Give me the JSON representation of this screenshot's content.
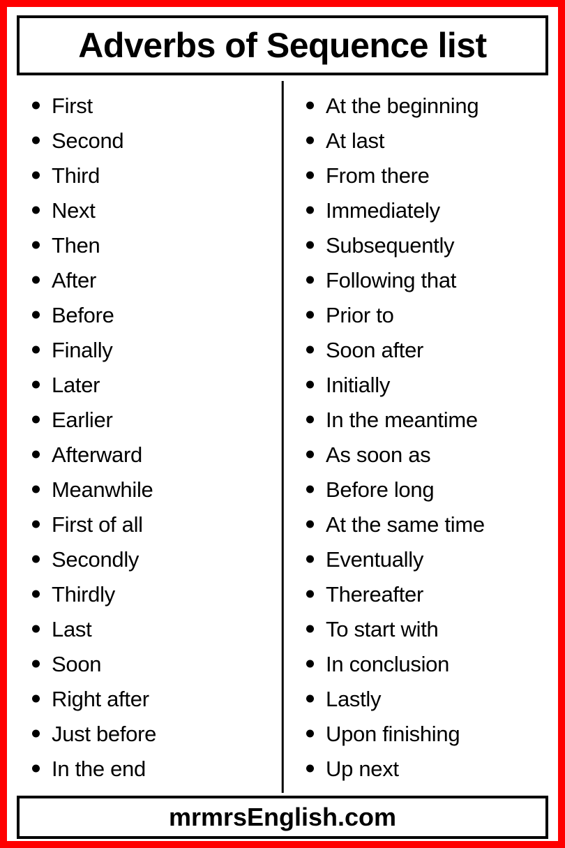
{
  "title": "Adverbs of Sequence list",
  "footer": "mrmrsEnglish.com",
  "colors": {
    "border_outer": "#ff0000",
    "border_inner": "#000000",
    "background": "#ffffff",
    "text": "#000000",
    "bullet": "#000000"
  },
  "left_column": [
    "First",
    "Second",
    "Third",
    "Next",
    "Then",
    "After",
    "Before",
    "Finally",
    "Later",
    "Earlier",
    "Afterward",
    "Meanwhile",
    "First of all",
    "Secondly",
    "Thirdly",
    "Last",
    "Soon",
    "Right after",
    "Just before",
    "In the end"
  ],
  "right_column": [
    "At the beginning",
    "At last",
    "From there",
    "Immediately",
    "Subsequently",
    "Following that",
    "Prior to",
    "Soon after",
    "Initially",
    "In the meantime",
    "As soon as",
    "Before long",
    "At the same time",
    "Eventually",
    "Thereafter",
    "To start with",
    "In conclusion",
    "Lastly",
    "Upon finishing",
    "Up next"
  ]
}
